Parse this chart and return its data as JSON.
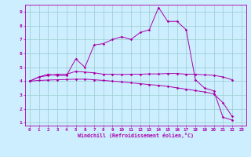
{
  "xlabel": "Windchill (Refroidissement éolien,°C)",
  "xlim": [
    -0.5,
    23.5
  ],
  "ylim": [
    0.8,
    9.5
  ],
  "xticks": [
    0,
    1,
    2,
    3,
    4,
    5,
    6,
    7,
    8,
    9,
    10,
    11,
    12,
    13,
    14,
    15,
    16,
    17,
    18,
    19,
    20,
    21,
    22,
    23
  ],
  "yticks": [
    1,
    2,
    3,
    4,
    5,
    6,
    7,
    8,
    9
  ],
  "bg_color": "#cceeff",
  "grid_color": "#99cccc",
  "line_color": "#aa00aa",
  "line1_x": [
    0,
    1,
    2,
    3,
    4,
    5,
    6,
    7,
    8,
    9,
    10,
    11,
    12,
    13,
    14,
    15,
    16,
    17,
    18,
    19,
    20,
    21,
    22
  ],
  "line1_y": [
    4.0,
    4.3,
    4.5,
    4.4,
    4.4,
    5.6,
    5.0,
    6.6,
    6.7,
    7.0,
    7.2,
    7.0,
    7.5,
    7.7,
    9.3,
    8.3,
    8.3,
    7.7,
    4.1,
    3.5,
    3.3,
    1.4,
    1.2
  ],
  "line2_x": [
    0,
    1,
    2,
    3,
    4,
    5,
    6,
    7,
    8,
    9,
    10,
    11,
    12,
    13,
    14,
    15,
    16,
    17,
    18,
    19,
    20,
    21,
    22
  ],
  "line2_y": [
    4.0,
    4.3,
    4.4,
    4.5,
    4.5,
    4.7,
    4.65,
    4.6,
    4.5,
    4.5,
    4.48,
    4.5,
    4.5,
    4.52,
    4.52,
    4.55,
    4.55,
    4.5,
    4.5,
    4.45,
    4.42,
    4.3,
    4.1
  ],
  "line3_x": [
    0,
    1,
    2,
    3,
    4,
    5,
    6,
    7,
    8,
    9,
    10,
    11,
    12,
    13,
    14,
    15,
    16,
    17,
    18,
    19,
    20,
    21,
    22
  ],
  "line3_y": [
    4.0,
    4.05,
    4.08,
    4.1,
    4.12,
    4.14,
    4.14,
    4.1,
    4.05,
    4.0,
    3.95,
    3.88,
    3.82,
    3.75,
    3.7,
    3.62,
    3.52,
    3.42,
    3.32,
    3.22,
    3.08,
    2.45,
    1.45
  ]
}
